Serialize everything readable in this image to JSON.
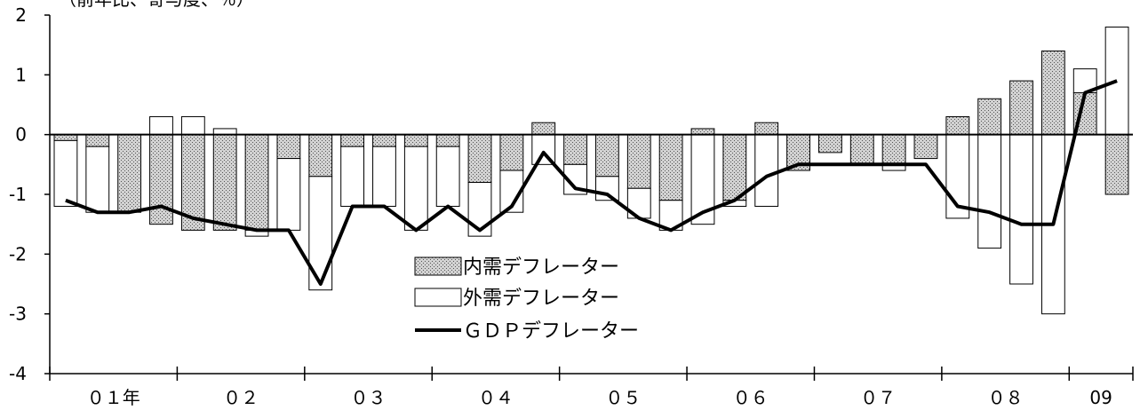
{
  "chart_data": {
    "type": "bar",
    "unit_label": "（前年比、寄与度、％）",
    "ylim": [
      -4,
      2
    ],
    "yticks": [
      "2",
      "1",
      "0",
      "-1",
      "-2",
      "-3",
      "-4"
    ],
    "ytick_values": [
      2,
      1,
      0,
      -1,
      -2,
      -3,
      -4
    ],
    "year_labels": [
      "０１年",
      "０２",
      "０３",
      "０４",
      "０５",
      "０６",
      "０７",
      "０８",
      "09"
    ],
    "bar_layout": "stacked-contribution",
    "legend": [
      "内需デフレーター",
      "外需デフレーター",
      "ＧＤＰデフレーター"
    ],
    "grid": false,
    "colors": {
      "domestic_fill": "#c8c8c8",
      "external_fill": "#ffffff",
      "line": "#000000"
    },
    "series": [
      {
        "name": "内需デフレーター",
        "type": "bar",
        "values": [
          -0.1,
          -0.2,
          -1.3,
          -1.5,
          -1.6,
          -1.6,
          -1.6,
          -0.4,
          -0.7,
          -0.2,
          -0.2,
          -0.2,
          -0.2,
          -0.8,
          -0.6,
          0.2,
          -0.5,
          -0.7,
          -0.9,
          -1.1,
          0.1,
          -1.1,
          0.2,
          -0.6,
          -0.3,
          -0.5,
          -0.5,
          -0.4,
          0.3,
          0.6,
          0.9,
          1.4,
          0.7,
          -1.0
        ]
      },
      {
        "name": "外需デフレーター",
        "type": "bar",
        "values": [
          -1.1,
          -1.1,
          0.0,
          0.3,
          0.3,
          0.1,
          -0.1,
          -1.2,
          -1.9,
          -1.0,
          -1.0,
          -1.4,
          -1.0,
          -0.9,
          -0.7,
          -0.5,
          -0.5,
          -0.4,
          -0.5,
          -0.5,
          -1.5,
          -0.1,
          -1.2,
          0.0,
          0.0,
          0.0,
          -0.1,
          0.0,
          -1.4,
          -1.9,
          -2.5,
          -3.0,
          0.4,
          1.8
        ]
      },
      {
        "name": "ＧＤＰデフレーター",
        "type": "line",
        "values": [
          -1.1,
          -1.3,
          -1.3,
          -1.2,
          -1.4,
          -1.5,
          -1.6,
          -1.6,
          -2.5,
          -1.2,
          -1.2,
          -1.6,
          -1.2,
          -1.6,
          -1.2,
          -0.3,
          -0.9,
          -1.0,
          -1.4,
          -1.6,
          -1.3,
          -1.1,
          -0.7,
          -0.5,
          -0.5,
          -0.5,
          -0.5,
          -0.5,
          -1.2,
          -1.3,
          -1.5,
          -1.5,
          0.7,
          0.9
        ]
      }
    ]
  }
}
